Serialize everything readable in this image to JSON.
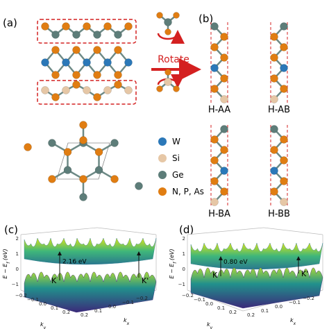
{
  "panel_a": {
    "label": "(a)",
    "rotate_label": "Rotate",
    "legend": [
      {
        "label": "W",
        "color": "#2b78b8"
      },
      {
        "label": "Si",
        "color": "#e6c7a6"
      },
      {
        "label": "Ge",
        "color": "#5d7d79"
      },
      {
        "label": "N, P, As",
        "color": "#e07d12"
      }
    ]
  },
  "panel_b": {
    "label": "(b)",
    "stackings": [
      "H-AA",
      "H-AB",
      "H-BA",
      "H-BB"
    ]
  },
  "panel_c": {
    "label": "(c)",
    "gap_label": "2.16 eV",
    "k_labels": [
      "K",
      "K'"
    ],
    "z_label": {
      "main": "E − E",
      "sub": "f",
      "unit": " (eV)"
    },
    "z_ticks": [
      "−1",
      "0",
      "1",
      "2"
    ],
    "ky_label": {
      "main": "k",
      "sub": "y"
    },
    "kx_label": {
      "main": "k",
      "sub": "x"
    },
    "ky_ticks": [
      "−0.2",
      "−0.1",
      "0.0",
      "0.1",
      "0.2"
    ],
    "kx_ticks": [
      "0.2",
      "0.1",
      "0.0",
      "−0.1",
      "−0.2"
    ]
  },
  "panel_d": {
    "label": "(d)",
    "gap_label": "0.80 eV",
    "k_labels": [
      "K",
      "K'"
    ],
    "z_label": {
      "main": "E − E",
      "sub": "f",
      "unit": " (eV)"
    },
    "z_ticks": [
      "−1",
      "0",
      "1",
      "2"
    ],
    "ky_label": {
      "main": "k",
      "sub": "y"
    },
    "kx_label": {
      "main": "k",
      "sub": "x"
    },
    "ky_ticks": [
      "−0.2",
      "−0.1",
      "0.0",
      "0.1",
      "0.2"
    ],
    "kx_ticks": [
      "0.2",
      "0.1",
      "0.0",
      "−0.1",
      "−0.2"
    ]
  }
}
